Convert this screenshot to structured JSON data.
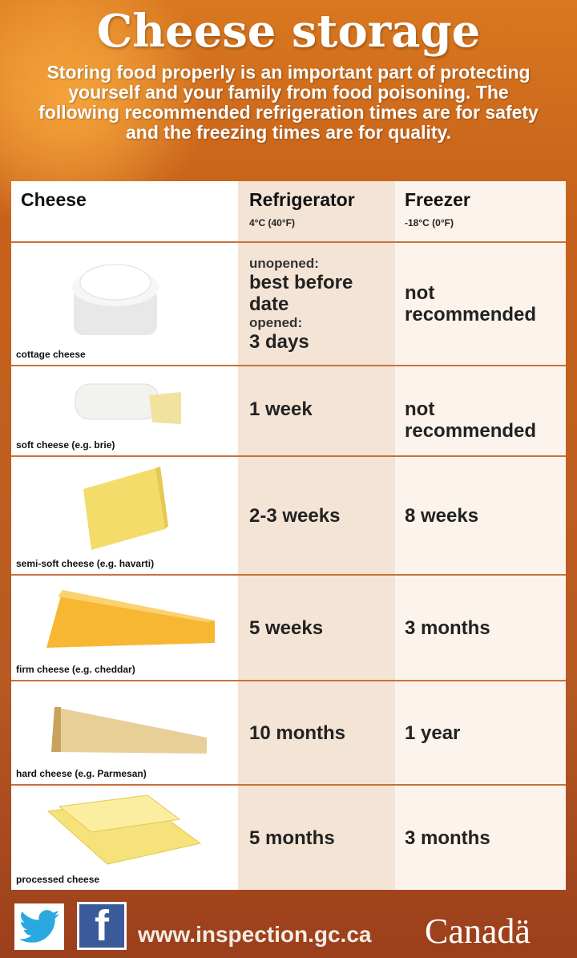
{
  "title": "Cheese storage",
  "intro": "Storing food properly is an important part of protecting yourself and your family from food poisoning. The following recommended refrigeration times are for safety and the freezing times are for quality.",
  "table": {
    "headers": {
      "cheese": "Cheese",
      "fridge": "Refrigerator",
      "fridge_temp": "4°C (40°F)",
      "freezer": "Freezer",
      "freezer_temp": "-18°C (0°F)"
    },
    "rows": [
      {
        "cheese": "cottage cheese",
        "fridge_unopened_label": "unopened:",
        "fridge_unopened": "best before date",
        "fridge_opened_label": "opened:",
        "fridge_opened": "3 days",
        "freezer": "not recommended"
      },
      {
        "cheese": "soft cheese (e.g. brie)",
        "fridge": "1 week",
        "freezer": "not recommended"
      },
      {
        "cheese": "semi-soft cheese (e.g. havarti)",
        "fridge": "2-3 weeks",
        "freezer": "8 weeks"
      },
      {
        "cheese": "firm cheese (e.g. cheddar)",
        "fridge": "5 weeks",
        "freezer": "3 months"
      },
      {
        "cheese": "hard cheese (e.g. Parmesan)",
        "fridge": "10 months",
        "freezer": "1 year"
      },
      {
        "cheese": "processed cheese",
        "fridge": "5 months",
        "freezer": "3 months"
      }
    ]
  },
  "footer": {
    "url": "www.inspection.gc.ca",
    "logo": "Canada",
    "icons": [
      "twitter-icon",
      "facebook-icon"
    ]
  }
}
